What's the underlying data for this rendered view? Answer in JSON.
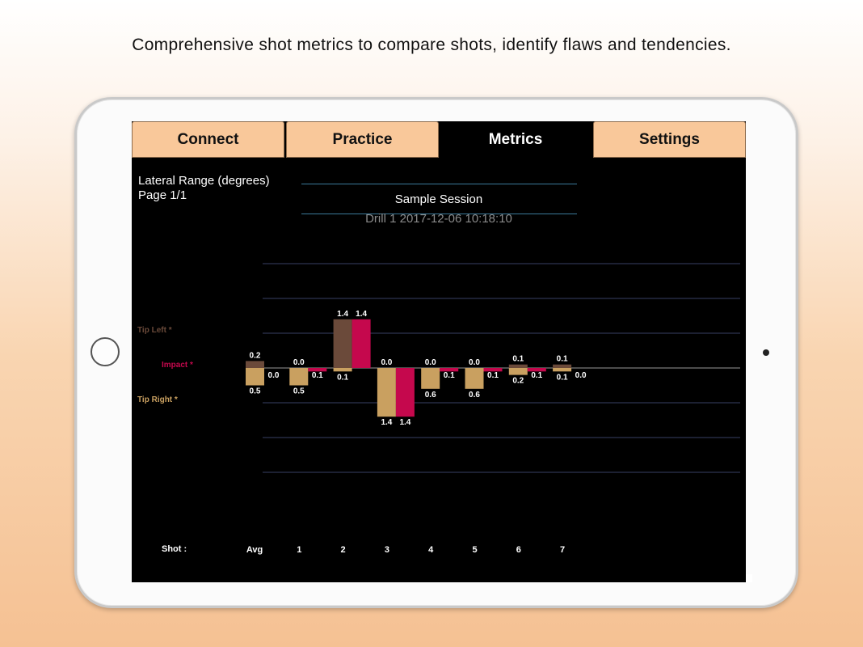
{
  "caption": "Comprehensive shot metrics to compare shots, identify flaws and tendencies.",
  "tabs": [
    {
      "label": "Connect",
      "active": false
    },
    {
      "label": "Practice",
      "active": false
    },
    {
      "label": "Metrics",
      "active": true
    },
    {
      "label": "Settings",
      "active": false
    }
  ],
  "metric": {
    "title": "Lateral Range  (degrees)",
    "page": "Page 1/1"
  },
  "session": {
    "name": "Sample Session",
    "drill": "Drill 1 2017-12-06 10:18:10"
  },
  "legend": {
    "tip_left": "Tip Left *",
    "impact": "Impact *",
    "tip_right": "Tip Right *"
  },
  "colors": {
    "tip_left": "#6b4a3a",
    "impact": "#c5084d",
    "tip_right": "#c9a060",
    "grid": "#2e3450",
    "tab_bg": "#f9c89a"
  },
  "shot_axis_label": "Shot :",
  "chart_data": {
    "type": "bar",
    "categories": [
      "Avg",
      "1",
      "2",
      "3",
      "4",
      "5",
      "6",
      "7"
    ],
    "series": [
      {
        "name": "Tip Left *",
        "values": [
          0.2,
          0.0,
          1.4,
          0.0,
          0.0,
          0.0,
          0.1,
          0.1
        ],
        "direction": "up"
      },
      {
        "name": "Tip Right *",
        "values": [
          0.5,
          0.5,
          0.1,
          1.4,
          0.6,
          0.6,
          0.2,
          0.1
        ],
        "direction": "down"
      },
      {
        "name": "Impact *",
        "values": [
          0.0,
          0.1,
          1.4,
          1.4,
          0.1,
          0.1,
          0.1,
          0.0
        ],
        "direction": [
          "up",
          "down",
          "up",
          "down",
          "down",
          "down",
          "down",
          "up"
        ]
      }
    ],
    "value_labels": {
      "tip_left": [
        "0.2",
        "0.0",
        "1.4",
        "0.0",
        "0.0",
        "0.0",
        "0.1",
        "0.1"
      ],
      "tip_right": [
        "0.5",
        "0.5",
        "0.1",
        "1.4",
        "0.6",
        "0.6",
        "0.2",
        "0.1"
      ],
      "impact": [
        "0.0",
        "0.1",
        "1.4",
        "1.4",
        "0.1",
        "0.1",
        "0.1",
        "0.0"
      ]
    },
    "ylim": [
      -3,
      3
    ],
    "grid": true
  }
}
